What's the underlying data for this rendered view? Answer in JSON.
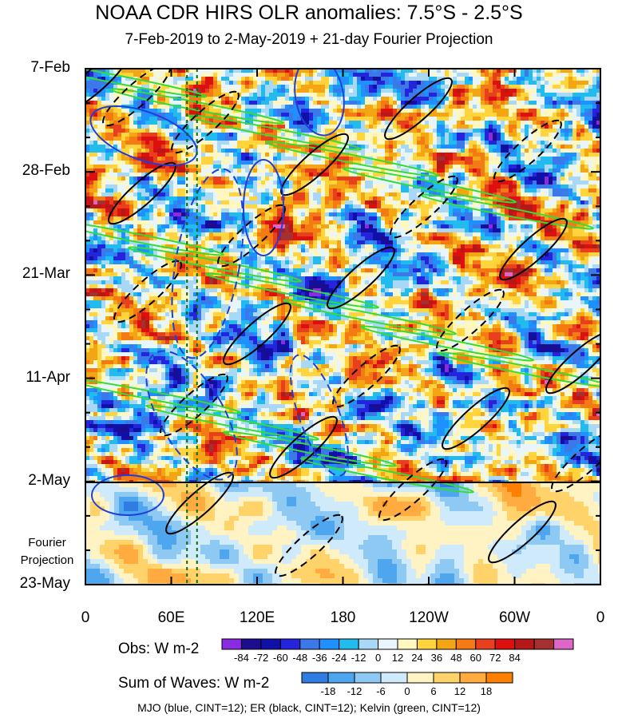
{
  "title": "NOAA CDR HIRS OLR anomalies: 7.5°S - 2.5°S",
  "subtitle": "7-Feb-2019 to 2-May-2019 + 21-day Fourier Projection",
  "chart_data": {
    "type": "heatmap",
    "description_axes": {
      "x_ticks": [
        "0",
        "60E",
        "120E",
        "180",
        "120W",
        "60W",
        "0"
      ],
      "x_tick_values": [
        0,
        60,
        120,
        180,
        240,
        300,
        360
      ],
      "y_ticks": [
        "7-Feb",
        "28-Feb",
        "21-Mar",
        "11-Apr",
        "2-May",
        "23-May"
      ],
      "y_tick_days": [
        0,
        21,
        42,
        63,
        84,
        105
      ],
      "xlim": [
        0,
        360
      ],
      "ylim_days": [
        0,
        105
      ]
    },
    "projection_label": [
      "Fourier",
      "Projection"
    ],
    "projection_start": "2-May",
    "marked_longitudes": [
      71,
      78
    ],
    "wave_overlays": [
      {
        "wave": "MJO",
        "color": "#1f3fd9"
      },
      {
        "wave": "ER",
        "color": "#000000"
      },
      {
        "wave": "Kelvin",
        "color": "#33dd33"
      }
    ],
    "colorbar_obs": {
      "title": "Obs: W m-2",
      "levels": [
        "-84",
        "-72",
        "-60",
        "-48",
        "-36",
        "-24",
        "-12",
        "0",
        "12",
        "24",
        "36",
        "48",
        "60",
        "72",
        "84"
      ],
      "colors": [
        "#8a2be2",
        "#1c0d8f",
        "#1010a8",
        "#2424dc",
        "#3b78e8",
        "#1e90ff",
        "#22bbee",
        "#a8d8f5",
        "#e8f6fc",
        "#fff6c0",
        "#ffd43c",
        "#f4a514",
        "#f47a14",
        "#e8401c",
        "#dd1010",
        "#b51818",
        "#a53030",
        "#dd66c8"
      ]
    },
    "colorbar_waves": {
      "title": "Sum of Waves: W m-2",
      "levels": [
        "-18",
        "-12",
        "-6",
        "0",
        "6",
        "12",
        "18"
      ],
      "colors": [
        "#2f7de0",
        "#4da6ee",
        "#8ec9f3",
        "#cfeafb",
        "#fff3c4",
        "#ffd26a",
        "#ffab40",
        "#ff8000"
      ]
    },
    "credits": "MJO (blue, CINT=12); ER (black, CINT=12); Kelvin (green, CINT=12)"
  }
}
